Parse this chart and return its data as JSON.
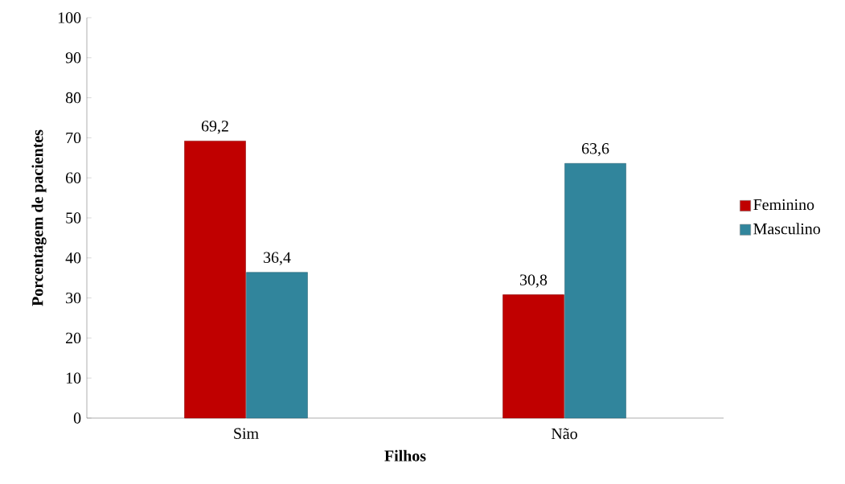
{
  "chart_data": {
    "type": "bar",
    "xlabel": "Filhos",
    "ylabel": "Porcentagem de pacientes",
    "categories": [
      "Sim",
      "Não"
    ],
    "series": [
      {
        "name": "Feminino",
        "color": "#c00000",
        "values": [
          69.2,
          30.8
        ],
        "value_labels": [
          "69,2",
          "30,8"
        ]
      },
      {
        "name": "Masculino",
        "color": "#31859c",
        "values": [
          36.4,
          63.6
        ],
        "value_labels": [
          "36,4",
          "63,6"
        ]
      }
    ],
    "ylim": [
      0,
      100
    ],
    "yticks": [
      0,
      10,
      20,
      30,
      40,
      50,
      60,
      70,
      80,
      90,
      100
    ],
    "legend": "right"
  }
}
